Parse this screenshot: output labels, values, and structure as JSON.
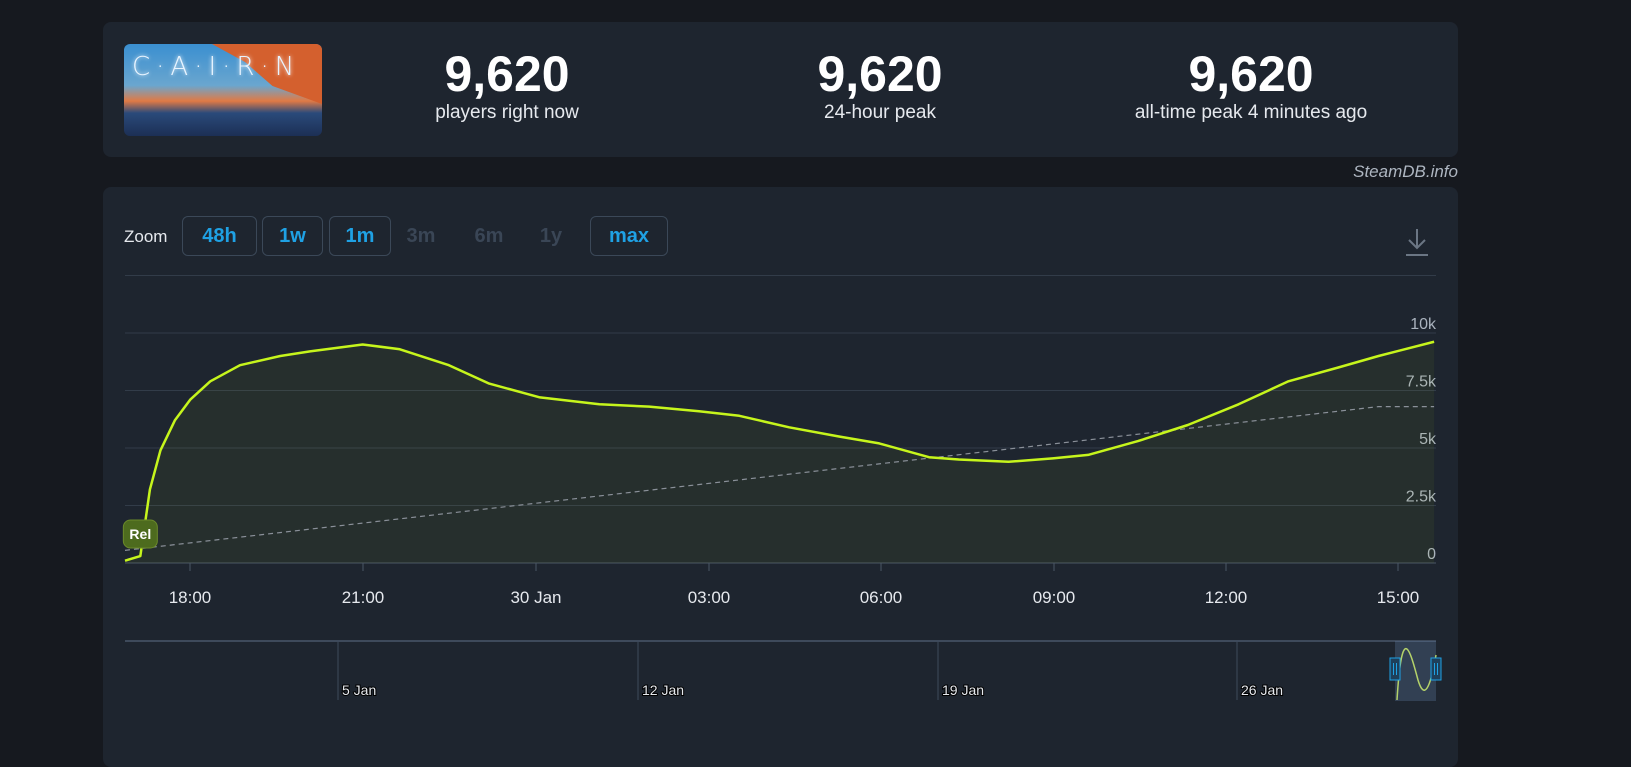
{
  "game": {
    "logo_text": "CAIRN"
  },
  "stats": [
    {
      "value": "9,620",
      "label": "players right now"
    },
    {
      "value": "9,620",
      "label": "24-hour peak"
    },
    {
      "value": "9,620",
      "label": "all-time peak 4 minutes ago"
    }
  ],
  "credit": "SteamDB.info",
  "zoom": {
    "label": "Zoom",
    "buttons": [
      {
        "label": "48h",
        "enabled": true
      },
      {
        "label": "1w",
        "enabled": true
      },
      {
        "label": "1m",
        "enabled": true
      },
      {
        "label": "3m",
        "enabled": false
      },
      {
        "label": "6m",
        "enabled": false
      },
      {
        "label": "1y",
        "enabled": false
      },
      {
        "label": "max",
        "enabled": true
      }
    ]
  },
  "download_icon": "download-icon",
  "colors": {
    "line": "#c6f51c",
    "accent": "#1fa1e4",
    "trend": "#8a9099"
  },
  "chart_data": {
    "type": "line",
    "x_ticks": [
      "18:00",
      "21:00",
      "30 Jan",
      "03:00",
      "06:00",
      "09:00",
      "12:00",
      "15:00"
    ],
    "y_ticks": [
      "0",
      "2.5k",
      "5k",
      "7.5k",
      "10k"
    ],
    "ylim": [
      0,
      12500
    ],
    "xlim": [
      "29 Jan 16:52",
      "30 Jan 15:40"
    ],
    "grid": true,
    "marker": {
      "label": "Rel",
      "time": "29 Jan 17:08"
    },
    "series": [
      {
        "values": [
          [
            "29 Jan 16:52",
            100
          ],
          [
            "29 Jan 17:08",
            300
          ],
          [
            "29 Jan 17:18",
            3200
          ],
          [
            "29 Jan 17:29",
            4900
          ],
          [
            "29 Jan 17:44",
            6200
          ],
          [
            "29 Jan 18:00",
            7100
          ],
          [
            "29 Jan 18:21",
            7900
          ],
          [
            "29 Jan 18:52",
            8600
          ],
          [
            "29 Jan 19:34",
            9000
          ],
          [
            "29 Jan 20:05",
            9200
          ],
          [
            "29 Jan 21:00",
            9500
          ],
          [
            "29 Jan 21:38",
            9300
          ],
          [
            "29 Jan 22:30",
            8600
          ],
          [
            "29 Jan 23:12",
            7800
          ],
          [
            "30 Jan 00:05",
            7200
          ],
          [
            "30 Jan 01:07",
            6900
          ],
          [
            "30 Jan 01:59",
            6800
          ],
          [
            "30 Jan 02:51",
            6600
          ],
          [
            "30 Jan 03:33",
            6400
          ],
          [
            "30 Jan 04:25",
            5900
          ],
          [
            "30 Jan 05:17",
            5500
          ],
          [
            "30 Jan 05:59",
            5200
          ],
          [
            "30 Jan 06:51",
            4600
          ],
          [
            "30 Jan 07:22",
            4500
          ],
          [
            "30 Jan 08:14",
            4400
          ],
          [
            "30 Jan 09:00",
            4550
          ],
          [
            "30 Jan 09:37",
            4700
          ],
          [
            "30 Jan 10:29",
            5300
          ],
          [
            "30 Jan 11:21",
            6000
          ],
          [
            "30 Jan 12:14",
            6900
          ],
          [
            "30 Jan 13:06",
            7900
          ],
          [
            "30 Jan 13:58",
            8500
          ],
          [
            "30 Jan 14:40",
            9000
          ],
          [
            "30 Jan 15:38",
            9620
          ]
        ]
      },
      {
        "style": "dashed",
        "values": [
          [
            "29 Jan 16:52",
            550
          ],
          [
            "30 Jan 14:40",
            6800
          ],
          [
            "30 Jan 15:38",
            6800
          ]
        ]
      }
    ],
    "navigator": {
      "labels": [
        "5 Jan",
        "12 Jan",
        "19 Jan",
        "26 Jan"
      ]
    }
  }
}
